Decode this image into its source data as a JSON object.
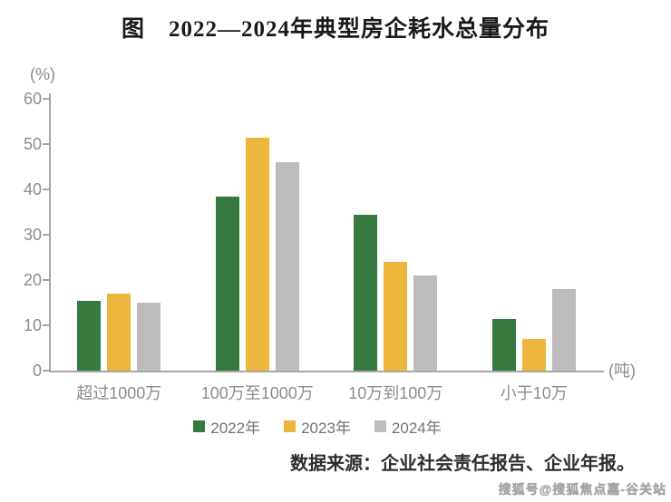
{
  "page": {
    "watermark": "搜狐号@搜狐焦点嘉-谷关站"
  },
  "chart_data": {
    "type": "bar",
    "title": "图　2022—2024年典型房企耗水总量分布",
    "y_unit": "(%)",
    "x_unit": "(吨)",
    "ylim": [
      0,
      60
    ],
    "y_ticks": [
      0,
      10,
      20,
      30,
      40,
      50,
      60
    ],
    "grid": false,
    "legend_position": "bottom",
    "categories": [
      "超过1000万",
      "100万至1000万",
      "10万到100万",
      "小于10万"
    ],
    "series": [
      {
        "name": "2022年",
        "color": "#35793f",
        "values": [
          15.5,
          38.5,
          34.5,
          11.5
        ]
      },
      {
        "name": "2023年",
        "color": "#ecb63c",
        "values": [
          17,
          51.5,
          24,
          7
        ]
      },
      {
        "name": "2024年",
        "color": "#bcbcbe",
        "values": [
          15,
          46,
          21,
          18
        ]
      }
    ],
    "source": "数据来源：企业社会责任报告、企业年报。"
  }
}
